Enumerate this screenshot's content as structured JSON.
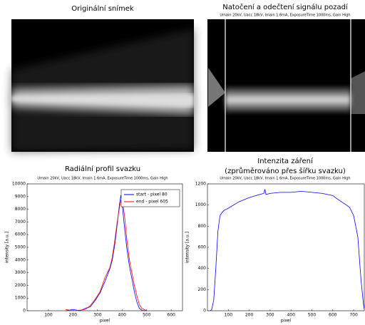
{
  "images": [
    {
      "title": "Originální snímek"
    },
    {
      "title": "Natočení a odečtení signálu pozadí",
      "subtitle": "Umain 20kV, Uacc 18kV, Imain 1.6mA, ExposureTime 1000ms, Gain High"
    }
  ],
  "chart_data": [
    {
      "type": "line",
      "title": "Radiální profil svazku",
      "subtitle": "Umain 20kV, Uacc 18kV, Imain 1.6mA, ExposureTime 1000ms, Gain High",
      "xlabel": "pixel",
      "ylabel": "intensity [a.u.]",
      "x": [
        170,
        200,
        230,
        250,
        270,
        290,
        310,
        330,
        350,
        360,
        370,
        380,
        390,
        395,
        400,
        410,
        420,
        430,
        440,
        450,
        460,
        470,
        480,
        490,
        500
      ],
      "series": [
        {
          "name": "start - pixel 80",
          "color": "#0000ff",
          "values": [
            0,
            100,
            0,
            200,
            300,
            800,
            1400,
            2300,
            3300,
            4000,
            5200,
            6800,
            8500,
            9100,
            8500,
            6500,
            4800,
            3500,
            2500,
            1500,
            700,
            200,
            50,
            0,
            0
          ]
        },
        {
          "name": "end - pixel 605",
          "color": "#ff0000",
          "values": [
            100,
            0,
            50,
            100,
            400,
            900,
            1500,
            2600,
            3400,
            4200,
            5500,
            7000,
            8200,
            8700,
            8800,
            7500,
            5500,
            4000,
            3000,
            2000,
            1200,
            500,
            200,
            100,
            0
          ]
        }
      ],
      "xlim": [
        13,
        646
      ],
      "ylim": [
        0,
        10000
      ],
      "xticks": [
        100,
        200,
        300,
        400,
        500,
        600
      ],
      "yticks": [
        0,
        1000,
        2000,
        3000,
        4000,
        5000,
        6000,
        7000,
        8000,
        9000,
        10000
      ],
      "legend": "upper right"
    },
    {
      "type": "line",
      "title": [
        "Intenzita záření",
        "(zprůměrováno přes šířku svazku)"
      ],
      "subtitle": "Umain 20kV, Uacc 18kV, Imain 1.6mA, ExposureTime 1000ms, Gain High",
      "xlabel": "pixel",
      "ylabel": "intensity [a.u.]",
      "x": [
        13,
        20,
        30,
        40,
        50,
        60,
        70,
        80,
        100,
        150,
        200,
        250,
        270,
        275,
        280,
        300,
        350,
        400,
        450,
        500,
        550,
        600,
        620,
        650,
        680,
        700,
        720,
        735,
        745,
        750
      ],
      "series": [
        {
          "color": "#0000ff",
          "values": [
            0,
            10,
            100,
            400,
            750,
            900,
            930,
            950,
            970,
            1030,
            1070,
            1100,
            1110,
            1150,
            1100,
            1110,
            1120,
            1120,
            1130,
            1120,
            1110,
            1090,
            1060,
            1020,
            980,
            900,
            700,
            300,
            100,
            20
          ]
        }
      ],
      "xlim": [
        0,
        751
      ],
      "ylim": [
        0,
        1200
      ],
      "xticks": [
        100,
        200,
        300,
        400,
        500,
        600,
        700
      ],
      "yticks": [
        0,
        200,
        400,
        600,
        800,
        1000,
        1200
      ]
    }
  ]
}
